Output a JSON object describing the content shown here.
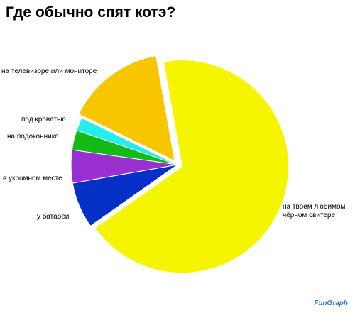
{
  "chart_data": {
    "type": "pie",
    "title": "Где обычно спят котэ?",
    "categories": [
      "на твоём любимом чёрном свитере",
      "у батареи",
      "в укромном месте",
      "на подоконнике",
      "под кроватью",
      "на телевизоре или мониторе"
    ],
    "values": [
      68,
      7,
      5,
      3,
      2,
      15
    ],
    "colors": [
      "#f5f500",
      "#0530c8",
      "#9a30d0",
      "#14bb14",
      "#22eeee",
      "#f7c600"
    ],
    "watermark": "FunGraph"
  }
}
